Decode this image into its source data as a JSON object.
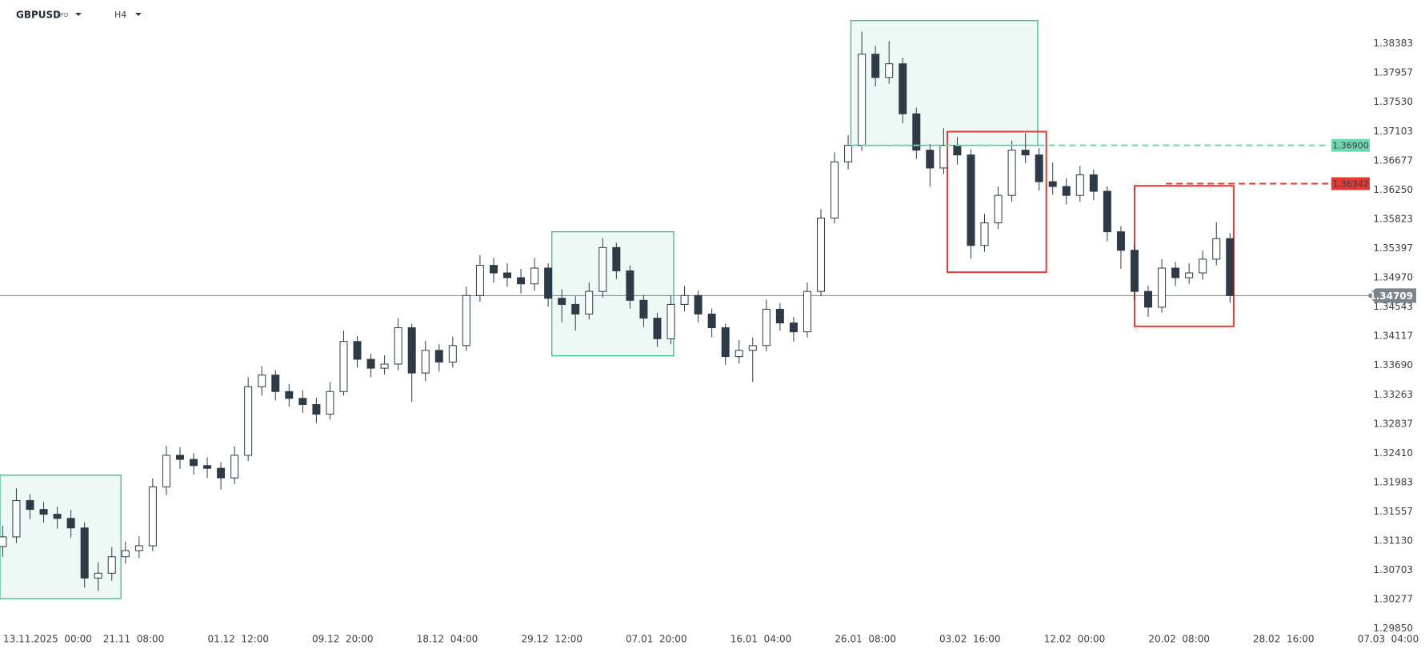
{
  "header": {
    "symbol": "GBPUSD",
    "instrument_type": "CFD",
    "timeframe": "H4"
  },
  "chart_data": {
    "type": "candlestick",
    "up_color": "#ffffff",
    "down_color": "#2e3a46",
    "outline_color": "#2e3a46",
    "xlim": [
      -0.2,
      104.3
    ],
    "ylim": [
      1.298,
      1.3902
    ],
    "grid": false,
    "x": [
      0,
      1,
      2,
      3,
      4,
      5,
      6,
      7,
      8,
      9,
      10,
      11,
      12,
      13,
      14,
      15,
      16,
      17,
      18,
      19,
      20,
      21,
      22,
      23,
      24,
      25,
      26,
      27,
      28,
      29,
      30,
      31,
      32,
      33,
      34,
      35,
      36,
      37,
      38,
      39,
      40,
      41,
      42,
      43,
      44,
      45,
      46,
      47,
      48,
      49,
      50,
      51,
      52,
      53,
      54,
      55,
      56,
      57,
      58,
      59,
      60,
      61,
      62,
      63,
      64,
      65,
      66,
      67,
      68,
      69,
      70,
      71,
      72,
      73,
      74,
      75,
      76,
      77,
      78,
      79,
      80,
      81,
      82,
      83,
      84,
      85,
      86,
      87,
      88,
      89,
      90
    ],
    "open": [
      1.3105,
      1.3119,
      1.3172,
      1.3159,
      1.3152,
      1.3146,
      1.3132,
      1.3059,
      1.3066,
      1.309,
      1.3099,
      1.3106,
      1.3192,
      1.3238,
      1.3232,
      1.3223,
      1.3219,
      1.3205,
      1.3238,
      1.3338,
      1.3355,
      1.3331,
      1.3321,
      1.3312,
      1.3298,
      1.3331,
      1.3404,
      1.3378,
      1.3365,
      1.3371,
      1.3424,
      1.3358,
      1.3391,
      1.3374,
      1.3398,
      1.3471,
      1.3515,
      1.3504,
      1.3497,
      1.3488,
      1.3511,
      1.3467,
      1.3458,
      1.3444,
      1.3477,
      1.3541,
      1.3507,
      1.3464,
      1.3438,
      1.3408,
      1.3458,
      1.3471,
      1.3444,
      1.3424,
      1.3382,
      1.3391,
      1.3398,
      1.3451,
      1.3431,
      1.3418,
      1.3477,
      1.3584,
      1.3666,
      1.369,
      1.3823,
      1.3789,
      1.3809,
      1.3736,
      1.3683,
      1.3657,
      1.369,
      1.3676,
      1.3544,
      1.3577,
      1.3617,
      1.3683,
      1.3676,
      1.3637,
      1.363,
      1.3617,
      1.3647,
      1.3623,
      1.3564,
      1.3537,
      1.3477,
      1.3454,
      1.3511,
      1.3497,
      1.3504,
      1.3524,
      1.3554
    ],
    "high": [
      1.3135,
      1.319,
      1.3181,
      1.317,
      1.3163,
      1.3158,
      1.314,
      1.3082,
      1.3104,
      1.3112,
      1.312,
      1.3204,
      1.3252,
      1.325,
      1.3241,
      1.3235,
      1.3228,
      1.3251,
      1.3352,
      1.3368,
      1.3362,
      1.3342,
      1.3333,
      1.3322,
      1.3345,
      1.342,
      1.3412,
      1.3386,
      1.3384,
      1.3438,
      1.343,
      1.3405,
      1.34,
      1.3411,
      1.3484,
      1.353,
      1.3526,
      1.3518,
      1.351,
      1.3526,
      1.3518,
      1.348,
      1.347,
      1.349,
      1.3555,
      1.3548,
      1.3515,
      1.3472,
      1.3446,
      1.3471,
      1.3485,
      1.3478,
      1.3452,
      1.343,
      1.3406,
      1.341,
      1.3465,
      1.346,
      1.344,
      1.349,
      1.3597,
      1.368,
      1.3705,
      1.3856,
      1.3835,
      1.3842,
      1.3818,
      1.3745,
      1.3692,
      1.3715,
      1.3702,
      1.3684,
      1.359,
      1.363,
      1.3697,
      1.3708,
      1.3686,
      1.3665,
      1.3642,
      1.366,
      1.3655,
      1.363,
      1.3572,
      1.3545,
      1.3485,
      1.3524,
      1.352,
      1.3518,
      1.3537,
      1.3578,
      1.3562
    ],
    "low": [
      1.309,
      1.311,
      1.3145,
      1.314,
      1.3131,
      1.3118,
      1.3045,
      1.304,
      1.3055,
      1.308,
      1.3088,
      1.3098,
      1.318,
      1.3218,
      1.321,
      1.3205,
      1.3188,
      1.3196,
      1.323,
      1.3325,
      1.3318,
      1.3309,
      1.33,
      1.3285,
      1.329,
      1.3325,
      1.3366,
      1.3352,
      1.3356,
      1.3362,
      1.3316,
      1.3346,
      1.336,
      1.3366,
      1.339,
      1.3462,
      1.349,
      1.3484,
      1.3474,
      1.3478,
      1.3455,
      1.3432,
      1.342,
      1.3436,
      1.3468,
      1.3495,
      1.3452,
      1.3425,
      1.3396,
      1.34,
      1.3448,
      1.3432,
      1.341,
      1.337,
      1.3372,
      1.3345,
      1.339,
      1.342,
      1.3404,
      1.341,
      1.347,
      1.3576,
      1.3655,
      1.3682,
      1.3776,
      1.378,
      1.3722,
      1.367,
      1.363,
      1.3648,
      1.3662,
      1.3525,
      1.3535,
      1.3568,
      1.3608,
      1.3664,
      1.3624,
      1.3618,
      1.3604,
      1.3608,
      1.361,
      1.355,
      1.351,
      1.3465,
      1.344,
      1.3446,
      1.3485,
      1.3488,
      1.3494,
      1.3515,
      1.346
    ],
    "close": [
      1.3119,
      1.3172,
      1.3159,
      1.3152,
      1.3146,
      1.3132,
      1.3059,
      1.3066,
      1.309,
      1.3099,
      1.3106,
      1.3192,
      1.3238,
      1.3232,
      1.3223,
      1.3219,
      1.3205,
      1.3238,
      1.3338,
      1.3355,
      1.3331,
      1.3321,
      1.3312,
      1.3298,
      1.3331,
      1.3404,
      1.3378,
      1.3365,
      1.3371,
      1.3424,
      1.3358,
      1.3391,
      1.3374,
      1.3398,
      1.3471,
      1.3515,
      1.3504,
      1.3497,
      1.3488,
      1.3511,
      1.3467,
      1.3458,
      1.3444,
      1.3477,
      1.3541,
      1.3507,
      1.3464,
      1.3438,
      1.3408,
      1.3458,
      1.3471,
      1.3444,
      1.3424,
      1.3382,
      1.3391,
      1.3398,
      1.3451,
      1.3431,
      1.3418,
      1.3477,
      1.3584,
      1.3666,
      1.369,
      1.3823,
      1.3789,
      1.3809,
      1.3736,
      1.3683,
      1.3657,
      1.369,
      1.3676,
      1.3544,
      1.3577,
      1.3617,
      1.3683,
      1.3676,
      1.3637,
      1.363,
      1.3617,
      1.3647,
      1.3623,
      1.3564,
      1.3537,
      1.3477,
      1.3454,
      1.3511,
      1.3497,
      1.3504,
      1.3524,
      1.3554,
      1.34709
    ],
    "yticks": [
      1.38383,
      1.37957,
      {
        "value": 1.3753,
        "label": "1.37530"
      },
      1.37103,
      1.36677,
      {
        "value": 1.3625,
        "label": "1.36250"
      },
      1.35823,
      1.35397,
      {
        "value": 1.3497,
        "label": "1.34970"
      },
      1.34543,
      1.34117,
      {
        "value": 1.3369,
        "label": "1.33690"
      },
      1.33263,
      1.32837,
      {
        "value": 1.3241,
        "label": "1.32410"
      },
      1.31983,
      1.31557,
      {
        "value": 1.3113,
        "label": "1.31130"
      },
      1.30703,
      1.30277,
      {
        "value": 1.2985,
        "label": "1.29850"
      }
    ],
    "xticks": [
      {
        "value": 1.93,
        "label": "13.11.2025  00:00"
      },
      {
        "value": 9.6,
        "label": "21.11  08:00"
      },
      {
        "value": 17.27,
        "label": "01.12  12:00"
      },
      {
        "value": 24.93,
        "label": "09.12  20:00"
      },
      {
        "value": 32.6,
        "label": "18.12  04:00"
      },
      {
        "value": 40.27,
        "label": "29.12  12:00"
      },
      {
        "value": 47.93,
        "label": "07.01  20:00"
      },
      {
        "value": 55.6,
        "label": "16.01  04:00"
      },
      {
        "value": 63.27,
        "label": "26.01  08:00"
      },
      {
        "value": 70.93,
        "label": "03.02  16:00"
      },
      {
        "value": 78.6,
        "label": "12.02  00:00"
      },
      {
        "value": 86.27,
        "label": "20.02  08:00"
      },
      {
        "value": 93.93,
        "label": "28.02  16:00"
      },
      {
        "value": 101.6,
        "label": "07.03  04:00"
      }
    ],
    "zones": [
      {
        "x0": -0.2,
        "x1": 8.67,
        "y0": 1.3029,
        "y1": 1.3209,
        "color": "#2bb58a"
      },
      {
        "x0": 40.27,
        "x1": 49.2,
        "y0": 1.3383,
        "y1": 1.3564,
        "color": "#2bb58a"
      },
      {
        "x0": 62.2,
        "x1": 75.9,
        "y0": 1.369,
        "y1": 1.3872,
        "color": "#2bb58a"
      },
      {
        "x0": 69.27,
        "x1": 76.53,
        "y0": 1.3505,
        "y1": 1.371,
        "color": "#e53935"
      },
      {
        "x0": 83,
        "x1": 90.27,
        "y0": 1.3426,
        "y1": 1.3631,
        "color": "#e53935"
      }
    ],
    "levels": [
      {
        "value": 1.369,
        "label": "1.36900",
        "x0": 62.2,
        "x1": 97.3,
        "color": "#6fd6b0"
      },
      {
        "value": 1.36342,
        "x0": 85.3,
        "x1": 97.3,
        "color": "#e53935"
      }
    ],
    "last_price": 1.34709
  }
}
